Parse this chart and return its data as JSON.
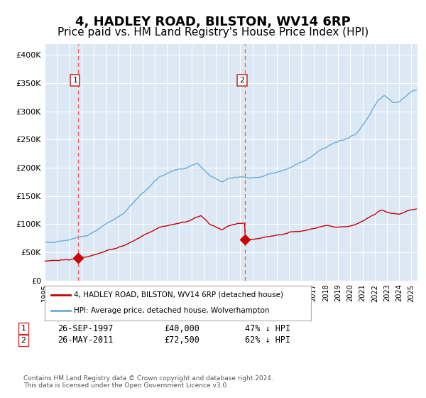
{
  "title": "4, HADLEY ROAD, BILSTON, WV14 6RP",
  "subtitle": "Price paid vs. HM Land Registry's House Price Index (HPI)",
  "title_fontsize": 13,
  "subtitle_fontsize": 11,
  "background_color": "#ffffff",
  "plot_bg_color": "#dce9f5",
  "ylim": [
    0,
    420000
  ],
  "yticks": [
    0,
    50000,
    100000,
    150000,
    200000,
    250000,
    300000,
    350000,
    400000
  ],
  "ytick_labels": [
    "£0",
    "£50K",
    "£100K",
    "£150K",
    "£200K",
    "£250K",
    "£300K",
    "£350K",
    "£400K"
  ],
  "sale1_year": 1997.74,
  "sale1_price": 40000,
  "sale2_year": 2011.4,
  "sale2_price": 72500,
  "hpi_color": "#6baed6",
  "red_color": "#cc0000",
  "dashed_color": "#ff4444",
  "legend_label1": "4, HADLEY ROAD, BILSTON, WV14 6RP (detached house)",
  "legend_label2": "HPI: Average price, detached house, Wolverhampton",
  "note1_date": "26-SEP-1997",
  "note1_price": "£40,000",
  "note1_pct": "47% ↓ HPI",
  "note2_date": "26-MAY-2011",
  "note2_price": "£72,500",
  "note2_pct": "62% ↓ HPI",
  "footer": "Contains HM Land Registry data © Crown copyright and database right 2024.\nThis data is licensed under the Open Government Licence v3.0.",
  "xmin": 1995.0,
  "xmax": 2025.5,
  "hpi_anchors_x": [
    1995.0,
    1996.0,
    1997.0,
    1998.5,
    2000.0,
    2001.5,
    2003.0,
    2004.5,
    2005.5,
    2006.5,
    2007.5,
    2008.5,
    2009.5,
    2010.0,
    2011.0,
    2012.0,
    2013.0,
    2014.0,
    2015.0,
    2016.5,
    2017.5,
    2018.5,
    2019.5,
    2020.5,
    2021.5,
    2022.3,
    2022.8,
    2023.5,
    2024.0,
    2025.0,
    2025.4
  ],
  "hpi_anchors_y": [
    67000,
    70000,
    73000,
    80000,
    100000,
    120000,
    155000,
    185000,
    195000,
    200000,
    208000,
    185000,
    175000,
    182000,
    183000,
    182000,
    185000,
    193000,
    200000,
    215000,
    232000,
    243000,
    250000,
    260000,
    290000,
    320000,
    330000,
    315000,
    318000,
    335000,
    338000
  ],
  "red_anchors_x": [
    1995.0,
    1996.0,
    1997.0,
    1997.74,
    1998.5,
    2000.0,
    2001.5,
    2003.0,
    2004.5,
    2005.5,
    2006.5,
    2007.3,
    2007.8,
    2008.5,
    2009.5,
    2010.0,
    2010.8,
    2011.35,
    2011.42,
    2011.5,
    2012.0,
    2013.0,
    2014.0,
    2015.0,
    2016.5,
    2017.5,
    2018.0,
    2019.0,
    2020.0,
    2021.0,
    2022.0,
    2022.5,
    2023.0,
    2023.5,
    2024.0,
    2025.0,
    2025.4
  ],
  "red_anchors_y": [
    35000,
    36000,
    37500,
    40000,
    42000,
    52000,
    62000,
    78000,
    95000,
    100000,
    103000,
    112000,
    115000,
    99000,
    90000,
    96000,
    102000,
    102000,
    72500,
    72000,
    73000,
    76000,
    80000,
    85000,
    90000,
    95000,
    97000,
    95000,
    96000,
    105000,
    118000,
    125000,
    122000,
    120000,
    118000,
    125000,
    127000
  ]
}
